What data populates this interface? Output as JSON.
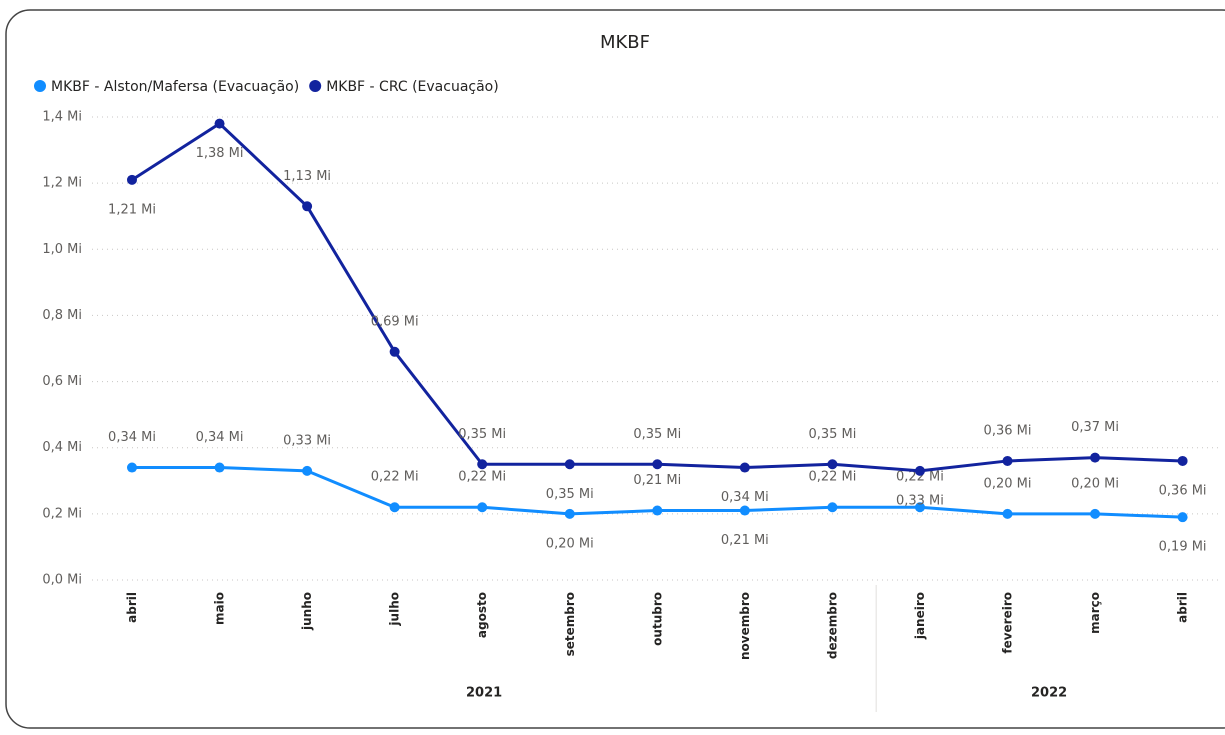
{
  "chart_data": {
    "type": "line",
    "title": "MKBF",
    "categories": [
      "abril",
      "maio",
      "junho",
      "julho",
      "agosto",
      "setembro",
      "outubro",
      "novembro",
      "dezembro",
      "janeiro",
      "fevereiro",
      "março",
      "abril"
    ],
    "groups": [
      {
        "name": "2021",
        "size": 9
      },
      {
        "name": "2022",
        "size": 4
      }
    ],
    "series": [
      {
        "name": "MKBF - Alston/Mafersa (Evacuação)",
        "color": "#118dff",
        "values": [
          0.34,
          0.34,
          0.33,
          0.22,
          0.22,
          0.2,
          0.21,
          0.21,
          0.22,
          0.22,
          0.2,
          0.2,
          0.19
        ],
        "value_labels": [
          "0,34 Mi",
          "0,34 Mi",
          "0,33 Mi",
          "0,22 Mi",
          "0,22 Mi",
          "0,20 Mi",
          "0,21 Mi",
          "0,21 Mi",
          "0,22 Mi",
          "0,22 Mi",
          "0,20 Mi",
          "0,20 Mi",
          "0,19 Mi"
        ]
      },
      {
        "name": "MKBF - CRC (Evacuação)",
        "color": "#12239e",
        "values": [
          1.21,
          1.38,
          1.13,
          0.69,
          0.35,
          0.35,
          0.35,
          0.34,
          0.35,
          0.33,
          0.36,
          0.37,
          0.36
        ],
        "value_labels": [
          "1,21 Mi",
          "1,38 Mi",
          "1,13 Mi",
          "0,69 Mi",
          "0,35 Mi",
          "0,35 Mi",
          "0,35 Mi",
          "0,34 Mi",
          "0,35 Mi",
          "0,33 Mi",
          "0,36 Mi",
          "0,37 Mi",
          "0,36 Mi"
        ]
      }
    ],
    "ylim": [
      0,
      1.4
    ],
    "yticks": [
      {
        "value": 0,
        "label": "0,0 Mi"
      },
      {
        "value": 0.2,
        "label": "0,2 Mi"
      },
      {
        "value": 0.4,
        "label": "0,4 Mi"
      },
      {
        "value": 0.6,
        "label": "0,6 Mi"
      },
      {
        "value": 0.8,
        "label": "0,8 Mi"
      },
      {
        "value": 1.0,
        "label": "1,0 Mi"
      },
      {
        "value": 1.2,
        "label": "1,2 Mi"
      },
      {
        "value": 1.4,
        "label": "1,4 Mi"
      }
    ],
    "grid": true,
    "legend": "top-left"
  }
}
